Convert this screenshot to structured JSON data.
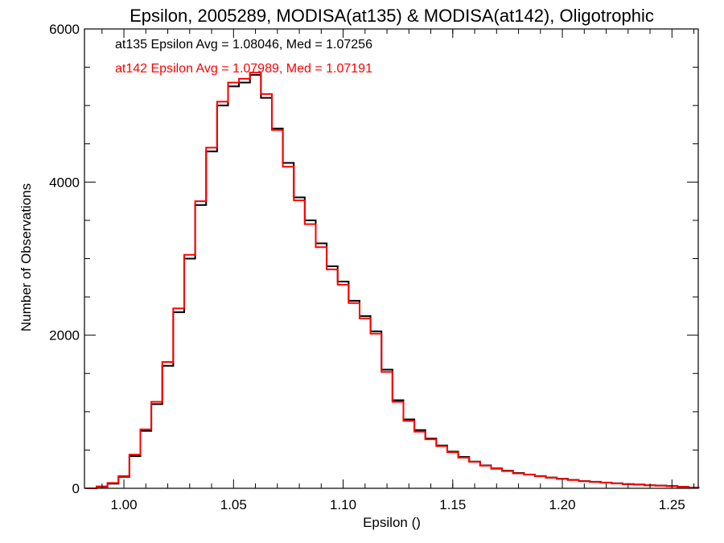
{
  "chart_data": {
    "type": "line",
    "title": "Epsilon, 2005289, MODISA(at135) & MODISA(at142), Oligotrophic",
    "xlabel": "Epsilon ()",
    "ylabel": "Number of Observations",
    "xlim": [
      0.982,
      1.262
    ],
    "ylim": [
      0,
      6000
    ],
    "grid": false,
    "x_ticks": [
      1.0,
      1.05,
      1.1,
      1.15,
      1.2,
      1.25
    ],
    "x_tick_labels": [
      "1.00",
      "1.05",
      "1.10",
      "1.15",
      "1.20",
      "1.25"
    ],
    "y_ticks": [
      0,
      2000,
      4000,
      6000
    ],
    "y_tick_labels": [
      "0",
      "2000",
      "4000",
      "6000"
    ],
    "annotations": [
      {
        "text": "at135 Epsilon Avg = 1.08046, Med = 1.07256",
        "color": "#000000"
      },
      {
        "text": "at142 Epsilon Avg = 1.07989, Med = 1.07191",
        "color": "#ff0000"
      }
    ],
    "series": [
      {
        "color": "#000000",
        "x": [
          0.985,
          0.99,
          0.995,
          1.0,
          1.005,
          1.01,
          1.015,
          1.02,
          1.025,
          1.03,
          1.035,
          1.04,
          1.045,
          1.05,
          1.055,
          1.06,
          1.065,
          1.07,
          1.075,
          1.08,
          1.085,
          1.09,
          1.095,
          1.1,
          1.105,
          1.11,
          1.115,
          1.12,
          1.125,
          1.13,
          1.135,
          1.14,
          1.145,
          1.15,
          1.155,
          1.16,
          1.165,
          1.17,
          1.175,
          1.18,
          1.185,
          1.19,
          1.195,
          1.2,
          1.205,
          1.21,
          1.215,
          1.22,
          1.225,
          1.23,
          1.235,
          1.24,
          1.245,
          1.25,
          1.255,
          1.26
        ],
        "y": [
          0,
          20,
          60,
          150,
          420,
          750,
          1100,
          1600,
          2300,
          3000,
          3700,
          4400,
          5000,
          5250,
          5300,
          5400,
          5100,
          4700,
          4250,
          3800,
          3500,
          3200,
          2900,
          2700,
          2450,
          2250,
          2050,
          1550,
          1150,
          900,
          760,
          650,
          560,
          480,
          410,
          350,
          300,
          260,
          230,
          200,
          180,
          160,
          140,
          125,
          110,
          95,
          85,
          75,
          65,
          55,
          50,
          40,
          35,
          30,
          20,
          10
        ]
      },
      {
        "color": "#ff0000",
        "x": [
          0.985,
          0.99,
          0.995,
          1.0,
          1.005,
          1.01,
          1.015,
          1.02,
          1.025,
          1.03,
          1.035,
          1.04,
          1.045,
          1.05,
          1.055,
          1.06,
          1.065,
          1.07,
          1.075,
          1.08,
          1.085,
          1.09,
          1.095,
          1.1,
          1.105,
          1.11,
          1.115,
          1.12,
          1.125,
          1.13,
          1.135,
          1.14,
          1.145,
          1.15,
          1.155,
          1.16,
          1.165,
          1.17,
          1.175,
          1.18,
          1.185,
          1.19,
          1.195,
          1.2,
          1.205,
          1.21,
          1.215,
          1.22,
          1.225,
          1.23,
          1.235,
          1.24,
          1.245,
          1.25,
          1.255,
          1.26
        ],
        "y": [
          0,
          25,
          70,
          160,
          440,
          770,
          1130,
          1650,
          2350,
          3050,
          3750,
          4450,
          5050,
          5300,
          5350,
          5430,
          5150,
          4680,
          4200,
          3760,
          3450,
          3150,
          2860,
          2660,
          2420,
          2220,
          2020,
          1520,
          1130,
          880,
          740,
          640,
          550,
          470,
          400,
          345,
          295,
          255,
          225,
          195,
          178,
          158,
          138,
          122,
          108,
          92,
          83,
          73,
          63,
          54,
          48,
          39,
          34,
          28,
          19,
          9
        ]
      }
    ]
  }
}
